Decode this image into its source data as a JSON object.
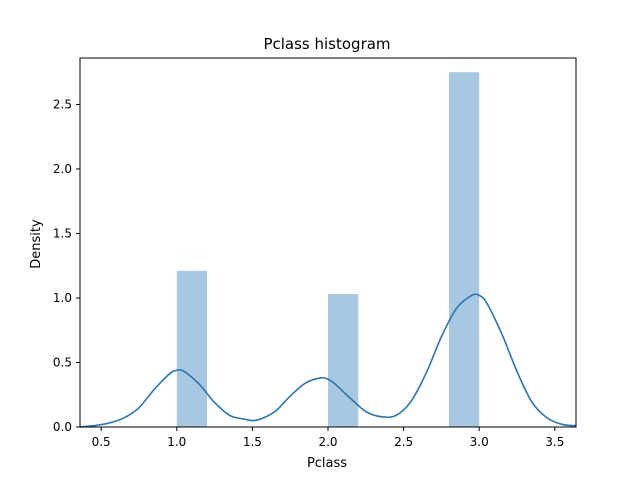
{
  "chart_data": {
    "type": "bar",
    "title": "Pclass histogram",
    "xlabel": "Pclass",
    "ylabel": "Density",
    "xlim": [
      0.36,
      3.64
    ],
    "ylim": [
      0,
      2.86
    ],
    "grid": false,
    "xticks": [
      0.5,
      1.0,
      1.5,
      2.0,
      2.5,
      3.0,
      3.5
    ],
    "xtick_labels": [
      "0.5",
      "1.0",
      "1.5",
      "2.0",
      "2.5",
      "3.0",
      "3.5"
    ],
    "yticks": [
      0.0,
      0.5,
      1.0,
      1.5,
      2.0,
      2.5
    ],
    "ytick_labels": [
      "0.0",
      "0.5",
      "1.0",
      "1.5",
      "2.0",
      "2.5"
    ],
    "bars": [
      {
        "x0": 1.0,
        "x1": 1.2,
        "value": 1.21
      },
      {
        "x0": 2.0,
        "x1": 2.2,
        "value": 1.03
      },
      {
        "x0": 2.8,
        "x1": 3.0,
        "value": 2.75
      }
    ],
    "kde": {
      "x": [
        0.36,
        0.45,
        0.55,
        0.65,
        0.75,
        0.85,
        0.95,
        1.0,
        1.05,
        1.15,
        1.25,
        1.35,
        1.45,
        1.5,
        1.55,
        1.65,
        1.75,
        1.85,
        1.95,
        2.0,
        2.05,
        2.15,
        2.25,
        2.35,
        2.45,
        2.55,
        2.65,
        2.75,
        2.85,
        2.95,
        3.0,
        3.05,
        3.15,
        3.25,
        3.35,
        3.45,
        3.55,
        3.64
      ],
      "y": [
        0.0,
        0.01,
        0.03,
        0.07,
        0.15,
        0.29,
        0.41,
        0.44,
        0.43,
        0.33,
        0.19,
        0.09,
        0.06,
        0.05,
        0.06,
        0.12,
        0.24,
        0.34,
        0.38,
        0.37,
        0.33,
        0.22,
        0.12,
        0.08,
        0.09,
        0.2,
        0.42,
        0.7,
        0.92,
        1.02,
        1.02,
        0.96,
        0.72,
        0.43,
        0.19,
        0.07,
        0.02,
        0.01
      ]
    },
    "colors": {
      "bar_fill": "#a6c8e0",
      "kde_line": "#2a74b4",
      "axes": "#000000"
    }
  }
}
